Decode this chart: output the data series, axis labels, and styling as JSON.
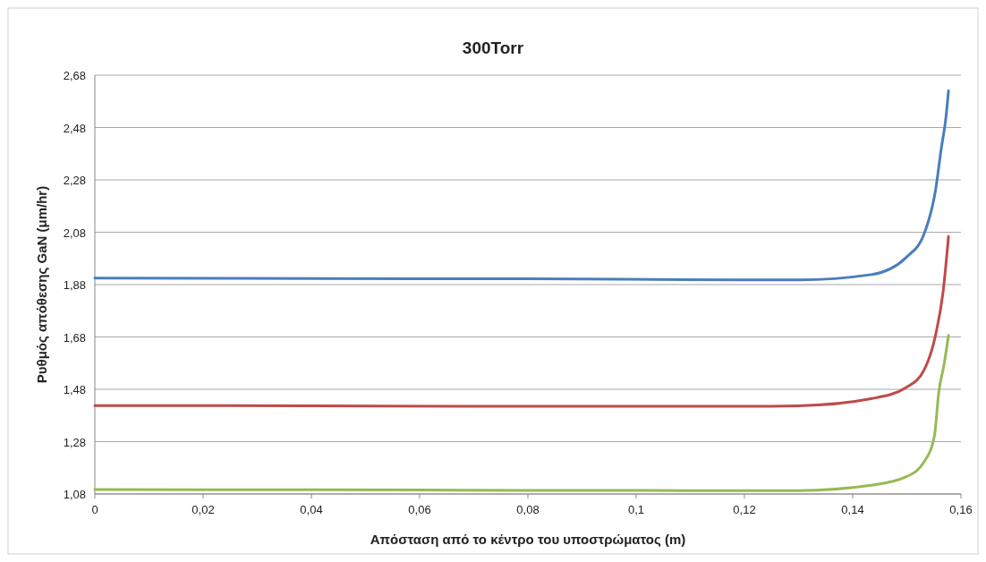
{
  "chart_data": {
    "type": "line",
    "title": "300Torr",
    "xlabel": "Απόσταση από το κέντρο του υποστρώματος (m)",
    "ylabel": "Ρυθμός απόθεσης GaN (μm/hr)",
    "xlim": [
      0,
      0.16
    ],
    "xticks": [
      {
        "value": 0,
        "label": "0"
      },
      {
        "value": 0.02,
        "label": "0,02"
      },
      {
        "value": 0.04,
        "label": "0,04"
      },
      {
        "value": 0.06,
        "label": "0,06"
      },
      {
        "value": 0.08,
        "label": "0,08"
      },
      {
        "value": 0.1,
        "label": "0,1"
      },
      {
        "value": 0.12,
        "label": "0,12"
      },
      {
        "value": 0.14,
        "label": "0,14"
      },
      {
        "value": 0.16,
        "label": "0,16"
      }
    ],
    "ylim": [
      1.08,
      2.68
    ],
    "yticks": [
      {
        "value": 1.08,
        "label": "1,08"
      },
      {
        "value": 1.28,
        "label": "1,28"
      },
      {
        "value": 1.48,
        "label": "1,48"
      },
      {
        "value": 1.68,
        "label": "1,68"
      },
      {
        "value": 1.88,
        "label": "1,88"
      },
      {
        "value": 2.08,
        "label": "2,08"
      },
      {
        "value": 2.28,
        "label": "2,28"
      },
      {
        "value": 2.48,
        "label": "2,48"
      },
      {
        "value": 2.68,
        "label": "2,68"
      }
    ],
    "grid": "y",
    "marker": "none",
    "line_style": "solid",
    "series": [
      {
        "color": "#4a7ebb",
        "x": [
          0,
          0.04,
          0.08,
          0.12,
          0.13,
          0.1434,
          0.1499,
          0.1532,
          0.1553,
          0.1564,
          0.1572,
          0.1577
        ],
        "values": [
          1.905,
          1.903,
          1.902,
          1.898,
          1.898,
          1.918,
          1.984,
          2.074,
          2.24,
          2.405,
          2.514,
          2.62
        ]
      },
      {
        "color": "#be4b48",
        "x": [
          0,
          0.04,
          0.08,
          0.12,
          0.13,
          0.1434,
          0.1499,
          0.1532,
          0.1553,
          0.1567,
          0.1577
        ],
        "values": [
          1.418,
          1.417,
          1.415,
          1.415,
          1.417,
          1.444,
          1.487,
          1.554,
          1.686,
          1.852,
          2.064
        ]
      },
      {
        "color": "#98b954",
        "x": [
          0,
          0.04,
          0.08,
          0.12,
          0.13,
          0.1434,
          0.1499,
          0.1532,
          0.1551,
          0.1559,
          0.1569,
          0.1577
        ],
        "values": [
          1.097,
          1.096,
          1.094,
          1.093,
          1.093,
          1.113,
          1.146,
          1.203,
          1.302,
          1.468,
          1.577,
          1.686
        ]
      }
    ]
  }
}
